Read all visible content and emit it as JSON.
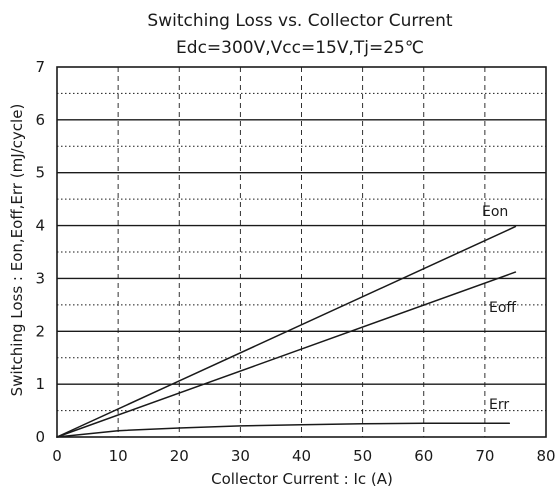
{
  "chart_data": {
    "type": "line",
    "title": "Switching Loss vs. Collector Current",
    "subtitle": "Edc=300V,Vcc=15V,Tj=25℃",
    "xlabel": "Collector Current : Ic (A)",
    "ylabel": "Switching Loss : Eon,Eoff,Err (mJ/cycle)",
    "xlim": [
      0,
      80
    ],
    "ylim": [
      0,
      7
    ],
    "x_ticks": [
      0,
      10,
      20,
      30,
      40,
      50,
      60,
      70,
      80
    ],
    "y_ticks": [
      0,
      1,
      2,
      3,
      4,
      5,
      6,
      7
    ],
    "grid": {
      "major_horizontal": "solid",
      "minor_horizontal": "dotted",
      "vertical": "dashed"
    },
    "colors": {
      "line": "#1a1a1a",
      "grid": "#1a1a1a"
    },
    "series": [
      {
        "name": "Eon",
        "x": [
          0,
          75
        ],
        "y": [
          0,
          3.98
        ]
      },
      {
        "name": "Eoff",
        "x": [
          0,
          75
        ],
        "y": [
          0,
          3.12
        ]
      },
      {
        "name": "Err",
        "x": [
          0,
          10,
          20,
          30,
          40,
          50,
          60,
          74
        ],
        "y": [
          0,
          0.12,
          0.17,
          0.21,
          0.23,
          0.25,
          0.26,
          0.26
        ]
      }
    ],
    "series_labels": [
      "Eon",
      "Eoff",
      "Err"
    ]
  }
}
